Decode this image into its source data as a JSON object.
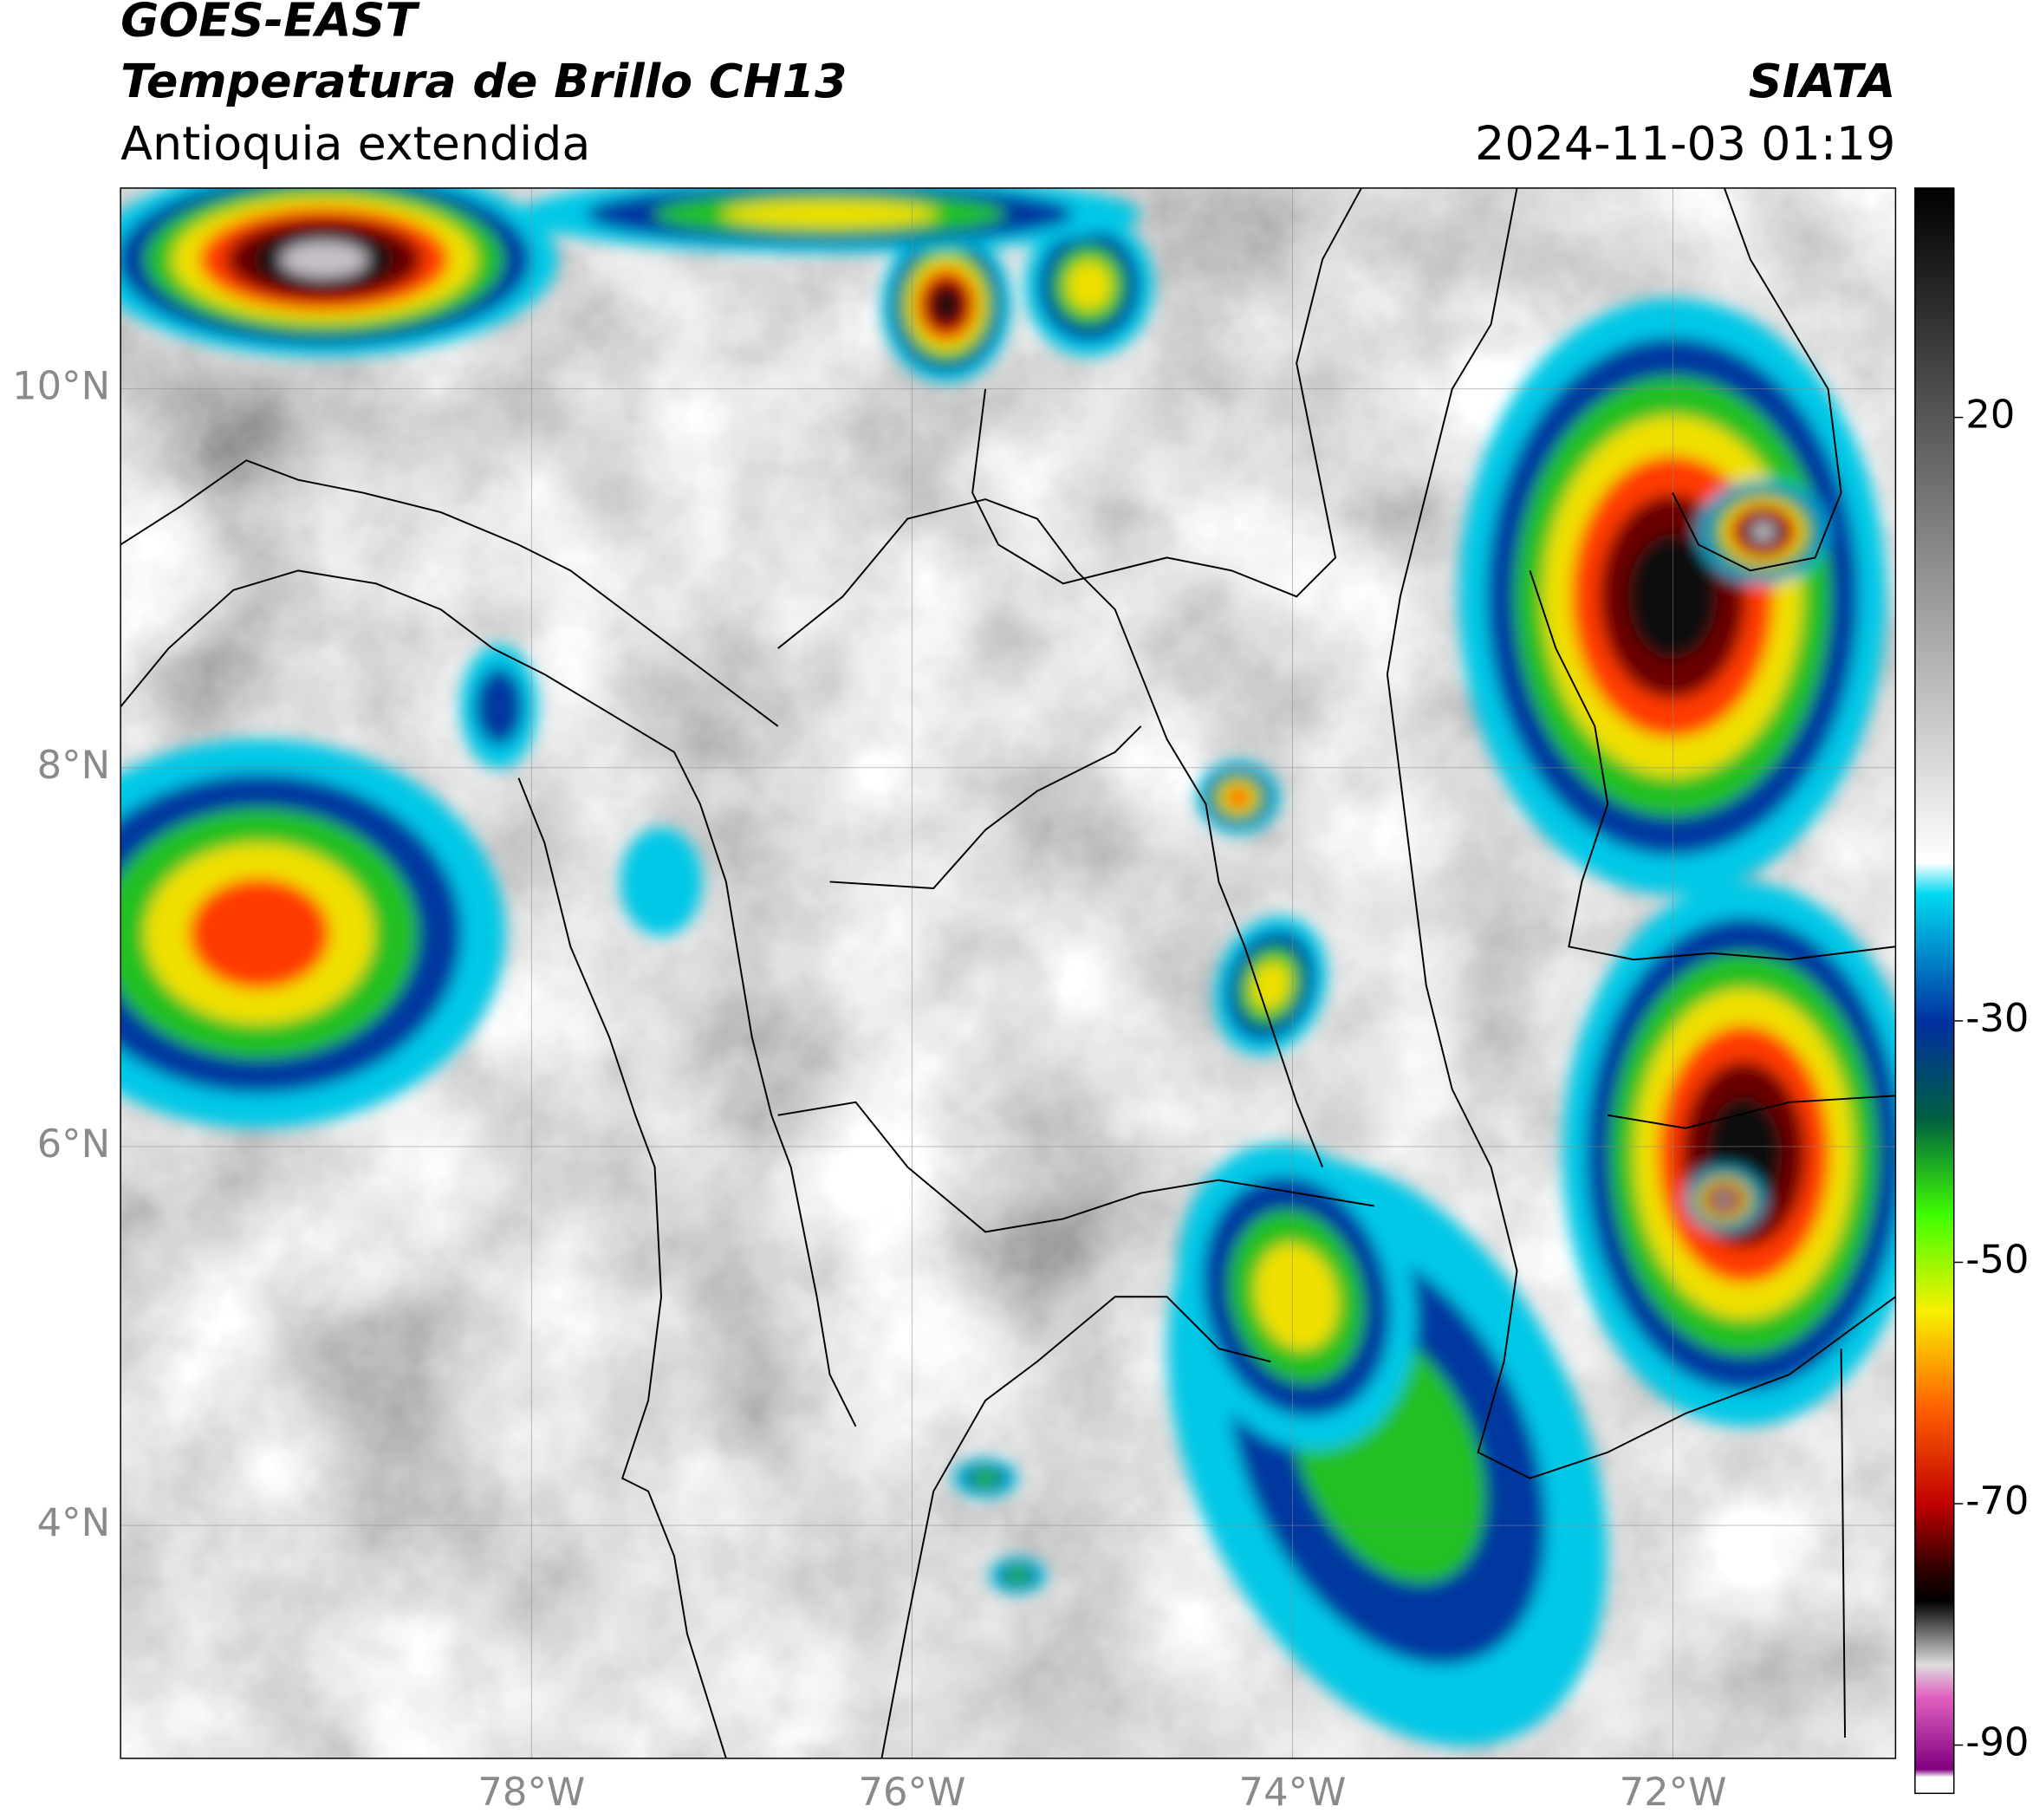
{
  "header": {
    "satellite": "GOES-EAST",
    "product": "Temperatura de Brillo CH13",
    "region": "Antioquia extendida",
    "source": "SIATA",
    "timestamp": "2024-11-03 01:19"
  },
  "map": {
    "xlim": [
      -80.16,
      -70.83
    ],
    "ylim": [
      2.77,
      11.06
    ],
    "xticks": [
      {
        "value": -78,
        "label": "78°W"
      },
      {
        "value": -76,
        "label": "76°W"
      },
      {
        "value": -74,
        "label": "74°W"
      },
      {
        "value": -72,
        "label": "72°W"
      }
    ],
    "yticks": [
      {
        "value": 4,
        "label": "4°N"
      },
      {
        "value": 6,
        "label": "6°N"
      },
      {
        "value": 8,
        "label": "8°N"
      },
      {
        "value": 10,
        "label": "10°N"
      }
    ],
    "grid": true
  },
  "colorbar": {
    "lim": [
      -94,
      39
    ],
    "ticks": [
      20,
      -30,
      -50,
      -70,
      -90
    ]
  }
}
